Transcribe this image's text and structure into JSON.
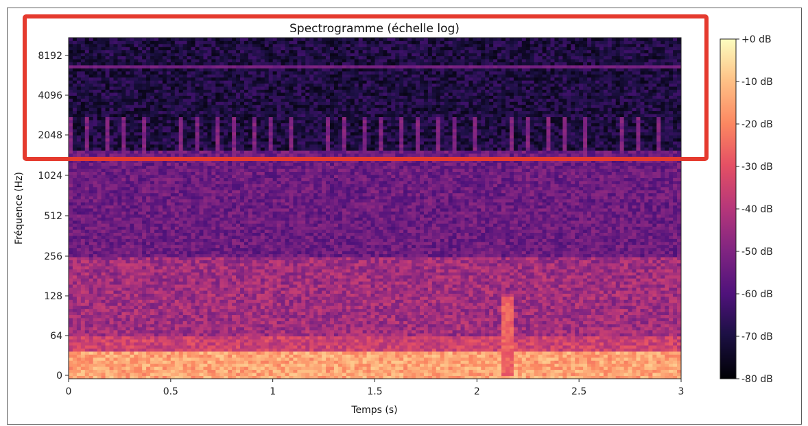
{
  "chart_data": {
    "type": "heatmap",
    "title": "Spectrogramme (échelle log)",
    "xlabel": "Temps (s)",
    "ylabel": "Fréquence (Hz)",
    "x_scale": "linear",
    "y_scale": "log",
    "xlim": [
      0,
      3
    ],
    "x_ticks": [
      0,
      0.5,
      1,
      1.5,
      2,
      2.5,
      3
    ],
    "x_tick_labels": [
      "0",
      "0.5",
      "1",
      "1.5",
      "2",
      "2.5",
      "3"
    ],
    "y_ticks": [
      0,
      64,
      128,
      256,
      512,
      1024,
      2048,
      4096,
      8192
    ],
    "y_tick_labels": [
      "0",
      "64",
      "128",
      "256",
      "512",
      "1024",
      "2048",
      "4096",
      "8192"
    ],
    "colormap": "magma",
    "colorbar": {
      "range_db": [
        -80,
        0
      ],
      "ticks": [
        0,
        -10,
        -20,
        -30,
        -40,
        -50,
        -60,
        -70,
        -80
      ],
      "tick_labels": [
        "+0 dB",
        "-10 dB",
        "-20 dB",
        "-30 dB",
        "-40 dB",
        "-50 dB",
        "-60 dB",
        "-70 dB",
        "-80 dB"
      ]
    },
    "features": {
      "low_band_hz": [
        0,
        40
      ],
      "low_band_level_db": -8,
      "harmonic_line_hz": 6800,
      "periodic_pulses_hz": [
        1600,
        2800
      ],
      "pulse_interval_s": 0.09,
      "transient_time_s": 2.15
    },
    "highlight": {
      "color": "#e53a2e",
      "freq_range_hz": [
        1500,
        12000
      ]
    }
  }
}
